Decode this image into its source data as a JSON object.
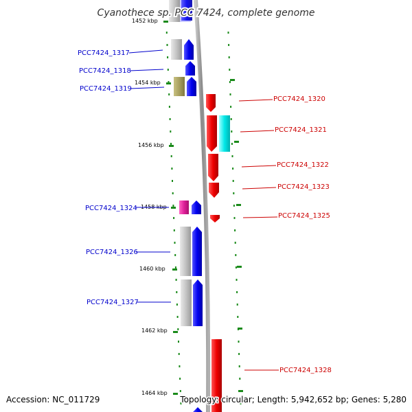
{
  "title": "Cyanothece sp. PCC 7424, complete genome",
  "scale": {
    "labels": [
      "1452 kbp",
      "1454 kbp",
      "1456 kbp",
      "1458 kbp",
      "1460 kbp",
      "1462 kbp",
      "1464 kbp"
    ]
  },
  "genes_left": [
    {
      "label": "PCC7424_1317",
      "color": "#0000cc"
    },
    {
      "label": "PCC7424_1318",
      "color": "#0000cc"
    },
    {
      "label": "PCC7424_1319",
      "color": "#0000cc"
    },
    {
      "label": "PCC7424_1324",
      "color": "#0000cc"
    },
    {
      "label": "PCC7424_1326",
      "color": "#0000cc"
    },
    {
      "label": "PCC7424_1327",
      "color": "#0000cc"
    }
  ],
  "genes_right": [
    {
      "label": "PCC7424_1320",
      "color": "#cc0000"
    },
    {
      "label": "PCC7424_1321",
      "color": "#cc0000"
    },
    {
      "label": "PCC7424_1322",
      "color": "#cc0000"
    },
    {
      "label": "PCC7424_1323",
      "color": "#cc0000"
    },
    {
      "label": "PCC7424_1325",
      "color": "#cc0000"
    },
    {
      "label": "PCC7424_1328",
      "color": "#cc0000"
    }
  ],
  "feature_colors": {
    "forward": "#0000ff",
    "reverse": "#ff0000",
    "cog_gray": "#c0c0c0",
    "cog_olive": "#a8a060",
    "cog_magenta": "#e0209a",
    "cog_cyan": "#00e8e8",
    "tick_green": "#1a8a1a",
    "backbone": "#909090"
  },
  "footer": {
    "accession": "Accession: NC_011729",
    "summary": "Topology: circular; Length: 5,942,652 bp; Genes: 5,280"
  }
}
